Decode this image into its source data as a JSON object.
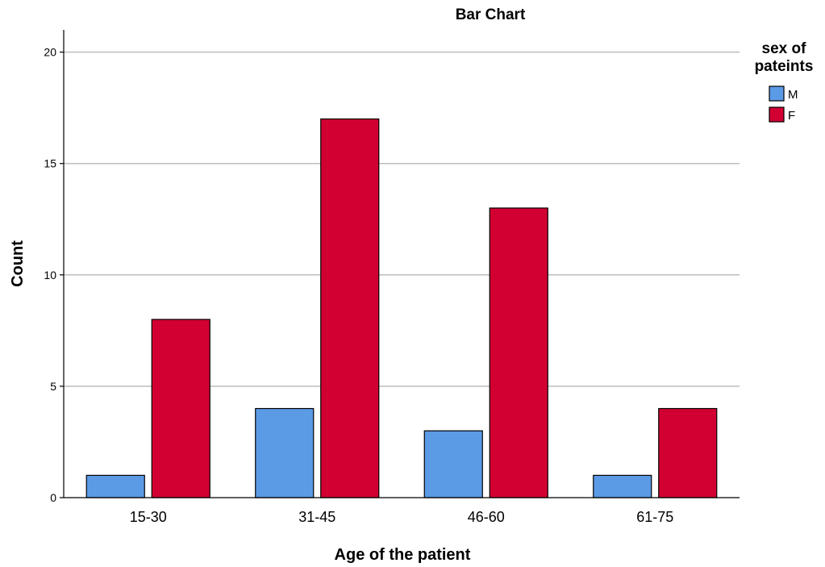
{
  "chart_data": {
    "type": "bar",
    "title": "Bar Chart",
    "xlabel": "Age of the patient",
    "ylabel": "Count",
    "categories": [
      "15-30",
      "31-45",
      "46-60",
      "61-75"
    ],
    "series": [
      {
        "name": "M",
        "values": [
          1,
          4,
          3,
          1
        ],
        "color": "#5b9be6"
      },
      {
        "name": "F",
        "values": [
          8,
          17,
          13,
          4
        ],
        "color": "#d20032"
      }
    ],
    "ylim": [
      0,
      21
    ],
    "yticks": [
      0,
      5,
      10,
      15,
      20
    ],
    "grid": true,
    "legend": {
      "title": "sex of pateints",
      "title_lines": [
        "sex of",
        "pateints"
      ],
      "placement": "top-right"
    }
  }
}
